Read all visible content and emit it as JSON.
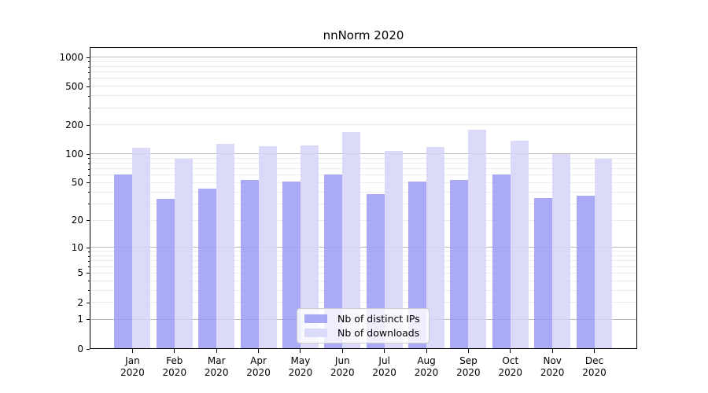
{
  "chart_data": {
    "type": "bar",
    "title": "nnNorm 2020",
    "categories": [
      "Jan",
      "Feb",
      "Mar",
      "Apr",
      "May",
      "Jun",
      "Jul",
      "Aug",
      "Sep",
      "Oct",
      "Nov",
      "Dec"
    ],
    "category_year": "2020",
    "series": [
      {
        "name": "Nb of distinct IPs",
        "color": "#9b9bf4",
        "values": [
          61,
          34,
          44,
          54,
          52,
          61,
          38,
          52,
          54,
          61,
          35,
          37
        ]
      },
      {
        "name": "Nb of downloads",
        "color": "#d5d5f8",
        "values": [
          117,
          90,
          128,
          121,
          123,
          171,
          109,
          120,
          181,
          137,
          101,
          90
        ]
      }
    ],
    "yscale": "log1p",
    "yticks": [
      0,
      1,
      2,
      5,
      10,
      20,
      50,
      100,
      200,
      500,
      1000
    ],
    "ylim": [
      0,
      1275
    ],
    "grid": {
      "major_color": "#bbbbbb",
      "minor_color": "#ececec",
      "major_at_powers_of_ten": true
    },
    "legend_position": "bottom-center",
    "axis_color": "#000000",
    "background": "#ffffff"
  }
}
